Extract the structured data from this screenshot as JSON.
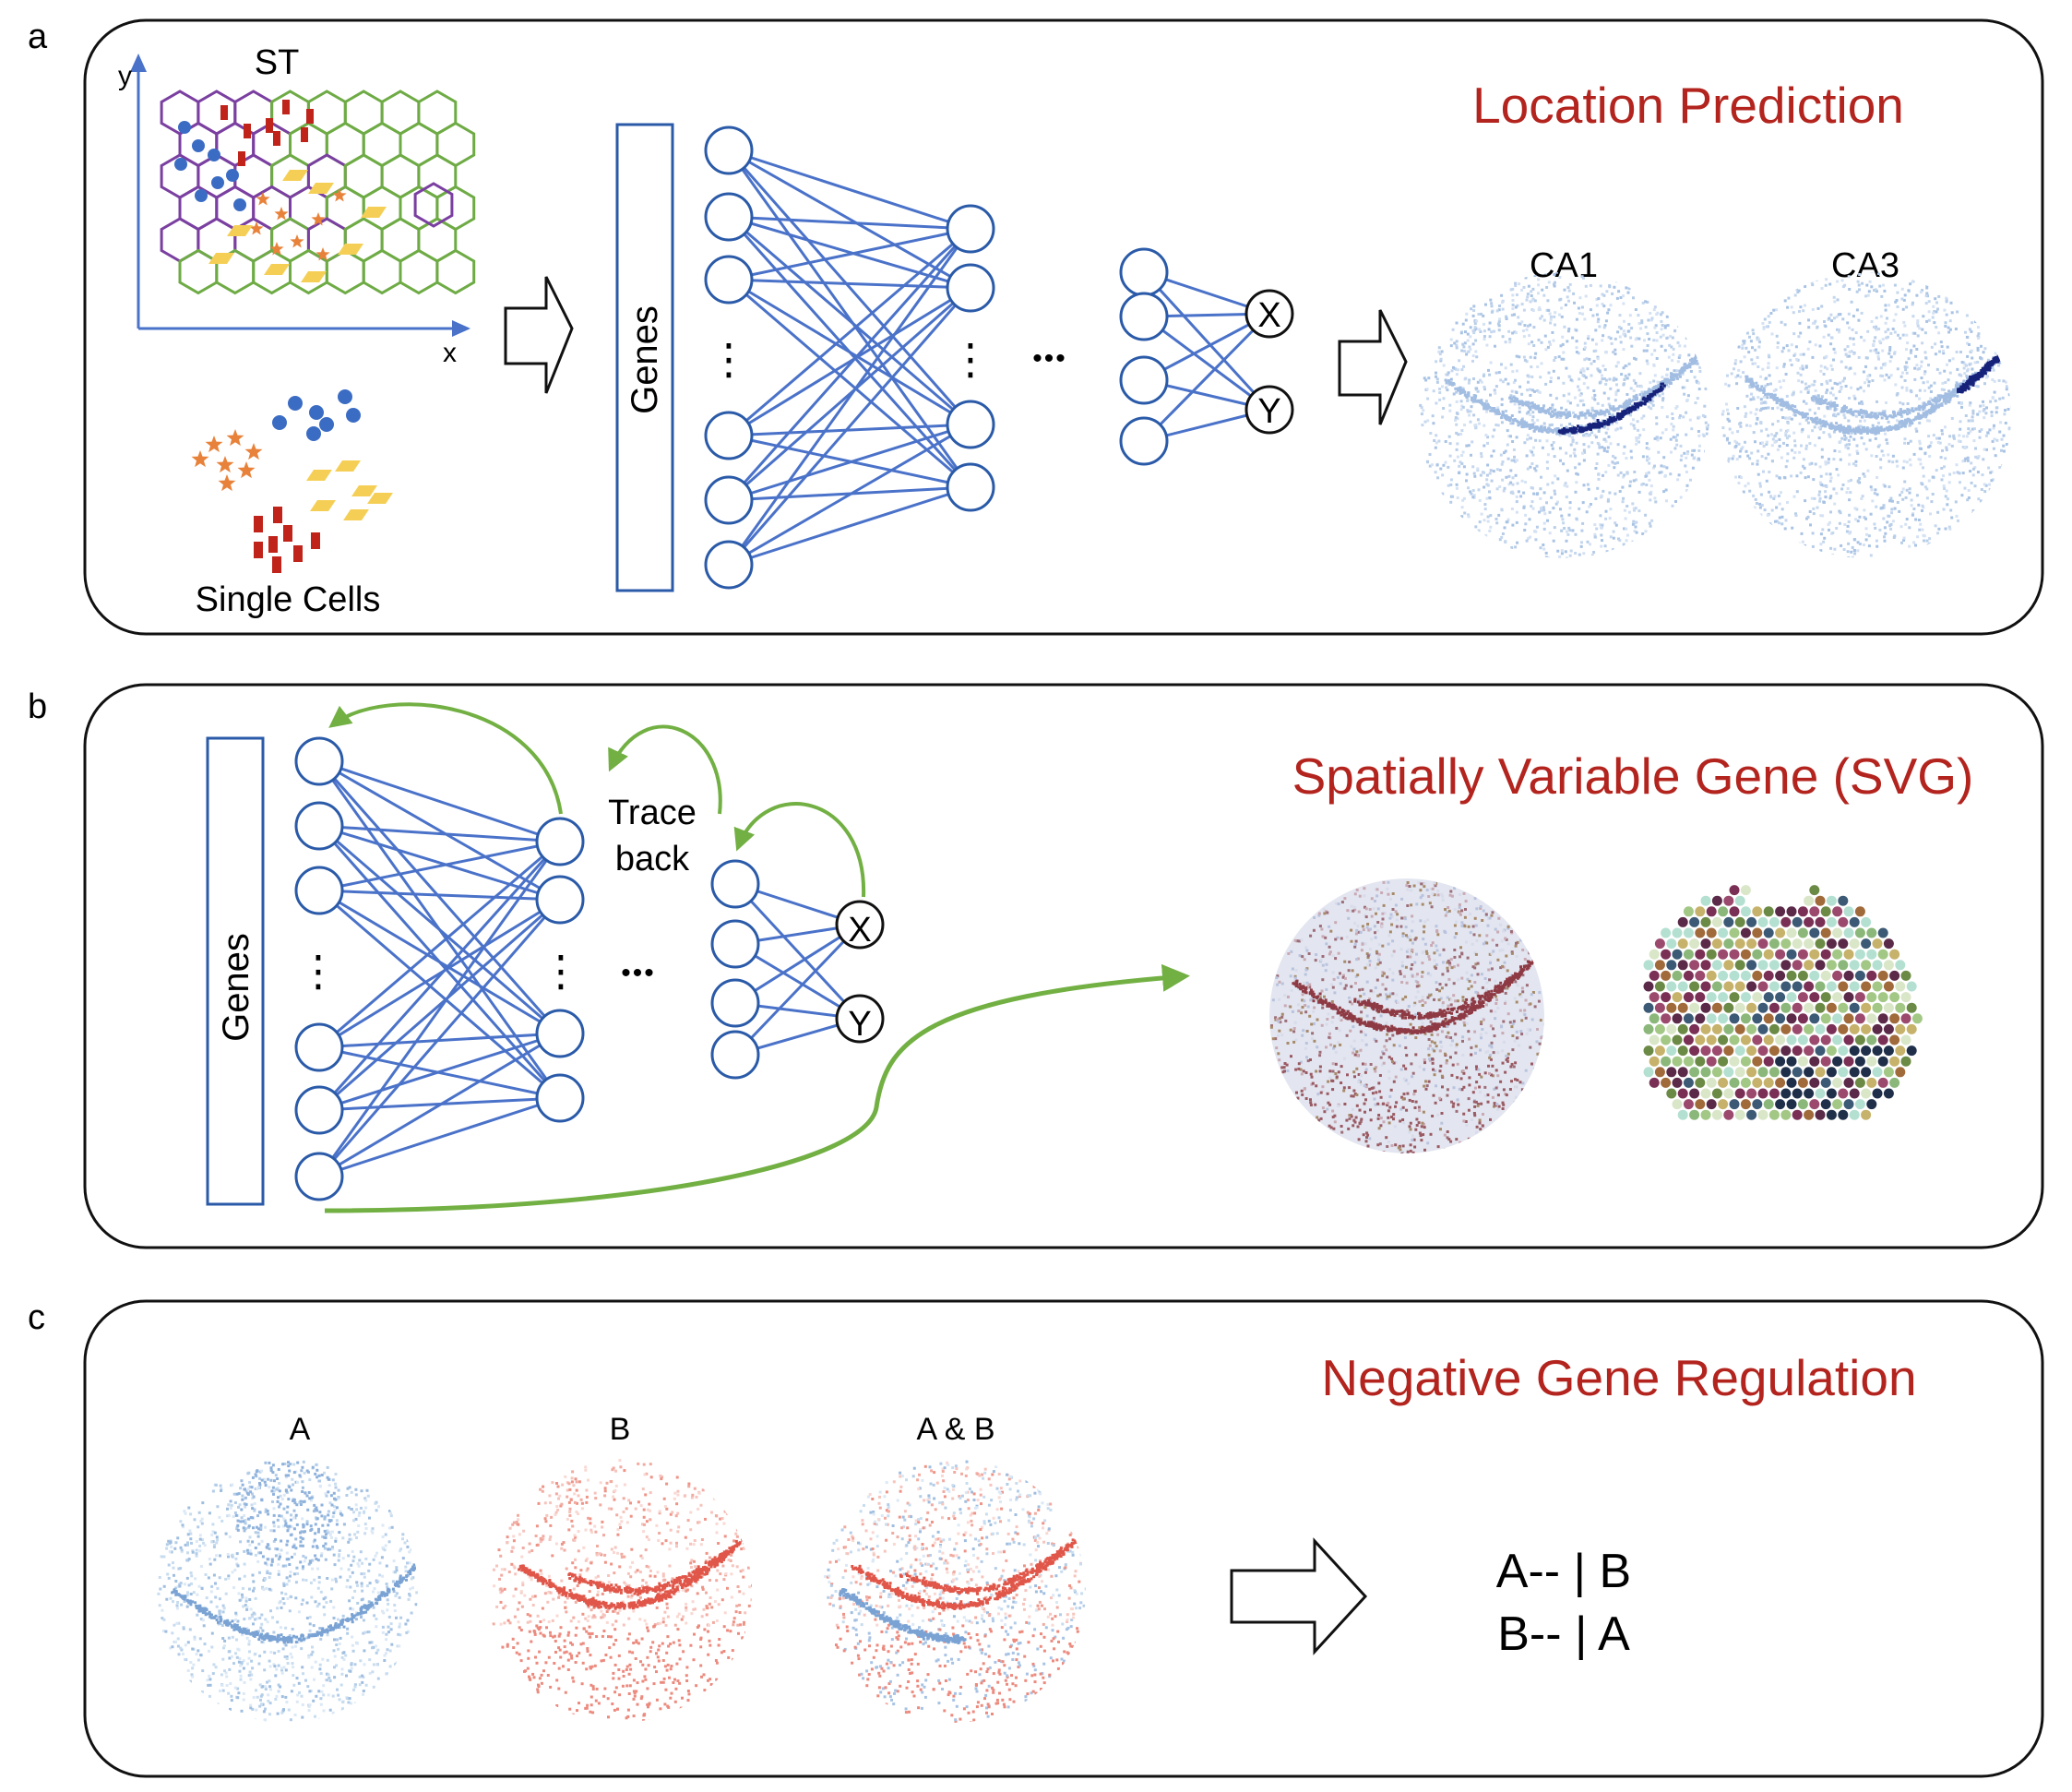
{
  "colors": {
    "nn_blue": "#4a72c9",
    "title_red": "#b3241e",
    "arrow_green": "#72b043",
    "hex_purple": "#7a3fa0",
    "hex_green": "#6eab45",
    "cell_blue": "#3b6cc4",
    "cell_red": "#c0231a",
    "cell_orange": "#e8823a",
    "cell_yellow": "#f5cf55",
    "sample_pale_blue": "#c5d7ee",
    "sample_dark_blue": "#17227a",
    "sample_red": "#e8564a"
  },
  "panels": {
    "a": {
      "letter": "a",
      "title": "Location Prediction",
      "st_label": "ST",
      "axis_x": "x",
      "axis_y": "y",
      "single_cells": "Single Cells",
      "genes": "Genes",
      "out_x": "X",
      "out_y": "Y",
      "ellipsis": "⋮",
      "dots": "•••",
      "map_labels": [
        "CA1",
        "CA3"
      ]
    },
    "b": {
      "letter": "b",
      "title": "Spatially Variable Gene (SVG)",
      "genes": "Genes",
      "trace": "Trace",
      "back": "back",
      "out_x": "X",
      "out_y": "Y",
      "ellipsis": "⋮",
      "dots": "•••"
    },
    "c": {
      "letter": "c",
      "title": "Negative Gene Regulation",
      "sample_labels": [
        "A",
        "B",
        "A & B"
      ],
      "rule1": "A-- | B",
      "rule2": "B-- | A"
    }
  }
}
